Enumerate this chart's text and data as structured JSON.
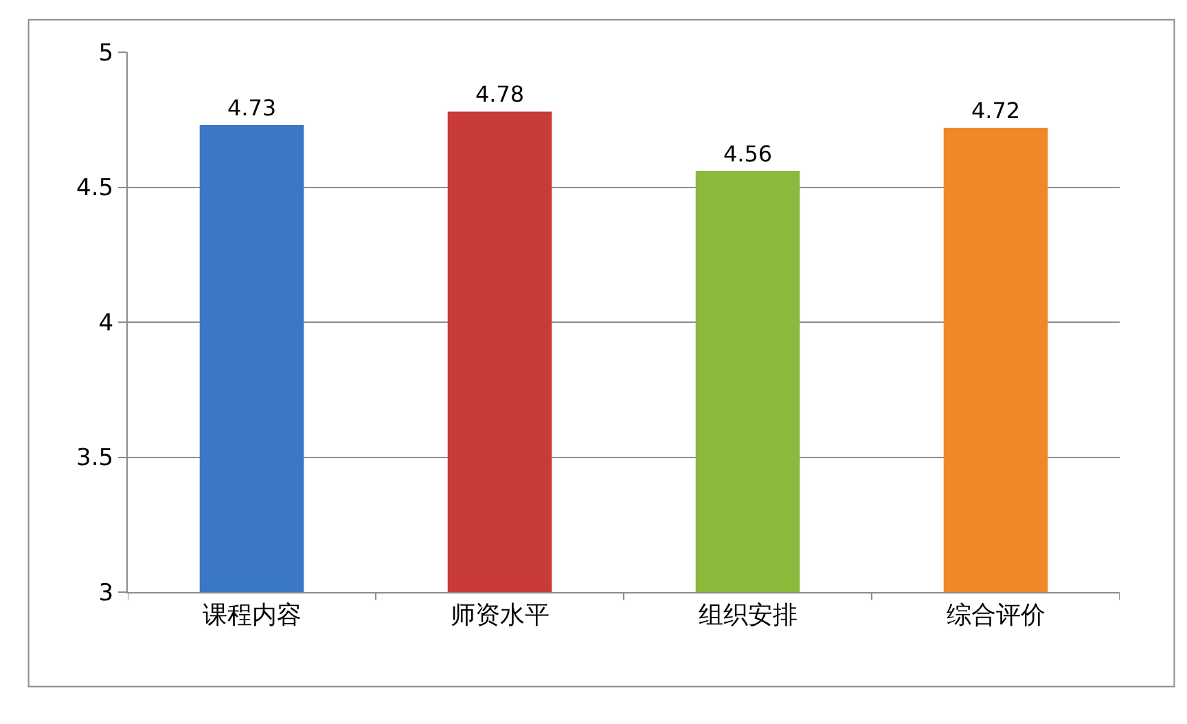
{
  "chart_data": {
    "type": "bar",
    "categories": [
      "课程内容",
      "师资水平",
      "组织安排",
      "综合评价"
    ],
    "values": [
      4.73,
      4.78,
      4.56,
      4.72
    ],
    "colors": [
      "#3a78c6",
      "#c83b36",
      "#8cb83c",
      "#f0882a"
    ],
    "ylim": [
      3,
      5
    ],
    "yticks": [
      3,
      3.5,
      4,
      4.5,
      5
    ],
    "grid": "y",
    "data_labels": true,
    "legend": false
  }
}
